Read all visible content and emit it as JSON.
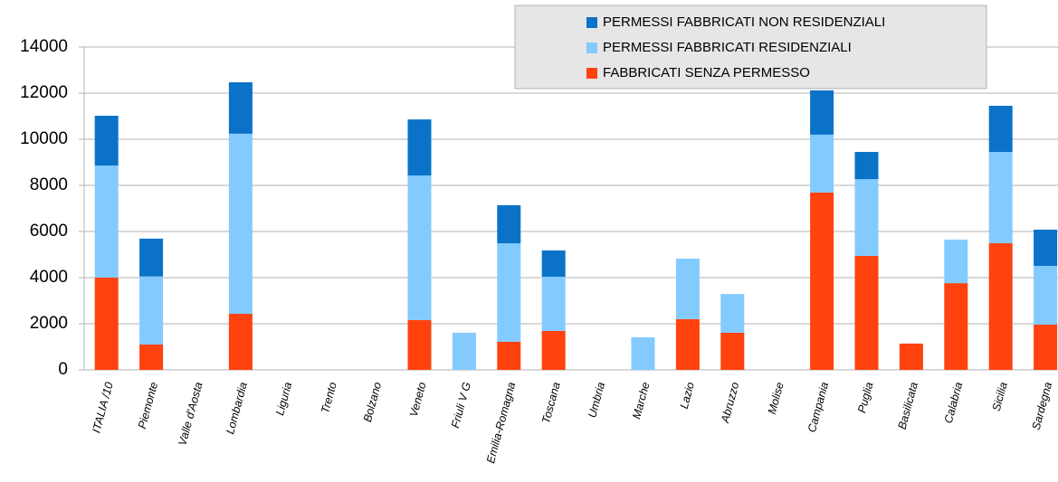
{
  "chart_data": {
    "type": "stacked_bar",
    "categories": [
      "ITALIA /10",
      "Piemonte",
      "Valle d'Aosta",
      "Lombardia",
      "Liguria",
      "Trento",
      "Bolzano",
      "Veneto",
      "Friuli V G",
      "Emilia-Romagna",
      "Toscana",
      "Umbria",
      "Marche",
      "Lazio",
      "Abruzzo",
      "Molise",
      "Campania",
      "Puglia",
      "Basilicata",
      "Calabria",
      "Sicilia",
      "Sardegna"
    ],
    "series": [
      {
        "name": "FABBRICATI SENZA PERMESSO",
        "color": "#ff420e",
        "values": [
          4000,
          1100,
          0,
          2430,
          0,
          0,
          0,
          2160,
          0,
          1220,
          1690,
          0,
          0,
          2200,
          1610,
          0,
          7690,
          4940,
          1140,
          3760,
          5490,
          1960
        ]
      },
      {
        "name": "PERMESSI FABBRICATI RESIDENZIALI",
        "color": "#83caff",
        "values": [
          4860,
          2950,
          0,
          7810,
          0,
          0,
          0,
          6270,
          1610,
          4270,
          2350,
          0,
          1410,
          2620,
          1680,
          0,
          2510,
          3330,
          0,
          1890,
          3960,
          2550
        ]
      },
      {
        "name": "PERMESSI FABBRICATI NON RESIDENZIALI",
        "color": "#0a73c8",
        "values": [
          2160,
          1640,
          0,
          2230,
          0,
          0,
          0,
          2430,
          0,
          1650,
          1140,
          0,
          0,
          0,
          0,
          0,
          1920,
          1180,
          0,
          0,
          2000,
          1570
        ]
      }
    ],
    "ylim": [
      0,
      14000
    ],
    "yticks": [
      0,
      2000,
      4000,
      6000,
      8000,
      10000,
      12000,
      14000
    ],
    "grid": true,
    "legend": "top-right"
  }
}
